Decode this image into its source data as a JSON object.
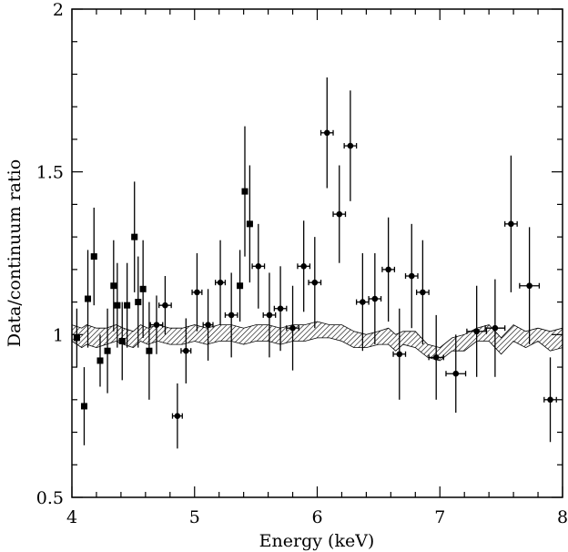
{
  "chart_data": {
    "type": "scatter",
    "title": "",
    "xlabel": "Energy (keV)",
    "ylabel": "Data/continuum ratio",
    "xlim": [
      4,
      8
    ],
    "ylim": [
      0.5,
      2
    ],
    "x_ticks": [
      4,
      5,
      6,
      7,
      8
    ],
    "x_tick_labels": [
      "4",
      "5",
      "6",
      "7",
      "8"
    ],
    "y_ticks": [
      0.5,
      1,
      1.5,
      2
    ],
    "y_tick_labels": [
      "0.5",
      "1",
      "1.5",
      "2"
    ],
    "grid": false,
    "series": [
      {
        "marker": "square",
        "color": "#000000",
        "points": [
          {
            "x": 4.04,
            "y": 0.99,
            "xerr": 0.02,
            "yerr": [
              0.09,
              0.09
            ]
          },
          {
            "x": 4.1,
            "y": 0.78,
            "xerr": 0.02,
            "yerr": [
              0.12,
              0.12
            ]
          },
          {
            "x": 4.13,
            "y": 1.11,
            "xerr": 0.02,
            "yerr": [
              0.15,
              0.15
            ]
          },
          {
            "x": 4.18,
            "y": 1.24,
            "xerr": 0.02,
            "yerr": [
              0.15,
              0.15
            ]
          },
          {
            "x": 4.23,
            "y": 0.92,
            "xerr": 0.02,
            "yerr": [
              0.08,
              0.08
            ]
          },
          {
            "x": 4.29,
            "y": 0.95,
            "xerr": 0.02,
            "yerr": [
              0.13,
              0.13
            ]
          },
          {
            "x": 4.34,
            "y": 1.15,
            "xerr": 0.02,
            "yerr": [
              0.14,
              0.14
            ]
          },
          {
            "x": 4.37,
            "y": 1.09,
            "xerr": 0.02,
            "yerr": [
              0.13,
              0.13
            ]
          },
          {
            "x": 4.41,
            "y": 0.98,
            "xerr": 0.02,
            "yerr": [
              0.12,
              0.12
            ]
          },
          {
            "x": 4.45,
            "y": 1.09,
            "xerr": 0.02,
            "yerr": [
              0.13,
              0.13
            ]
          },
          {
            "x": 4.51,
            "y": 1.3,
            "xerr": 0.02,
            "yerr": [
              0.17,
              0.17
            ]
          },
          {
            "x": 4.54,
            "y": 1.1,
            "xerr": 0.02,
            "yerr": [
              0.14,
              0.14
            ]
          },
          {
            "x": 4.58,
            "y": 1.14,
            "xerr": 0.02,
            "yerr": [
              0.15,
              0.15
            ]
          },
          {
            "x": 4.63,
            "y": 0.95,
            "xerr": 0.02,
            "yerr": [
              0.15,
              0.15
            ]
          },
          {
            "x": 5.37,
            "y": 1.15,
            "xerr": 0.02,
            "yerr": [
              0.11,
              0.11
            ]
          },
          {
            "x": 5.41,
            "y": 1.44,
            "xerr": 0.02,
            "yerr": [
              0.2,
              0.2
            ]
          },
          {
            "x": 5.45,
            "y": 1.34,
            "xerr": 0.02,
            "yerr": [
              0.18,
              0.18
            ]
          }
        ]
      },
      {
        "marker": "circle",
        "color": "#000000",
        "points": [
          {
            "x": 4.69,
            "y": 1.03,
            "xerr": 0.05,
            "yerr": [
              0.09,
              0.09
            ]
          },
          {
            "x": 4.76,
            "y": 1.09,
            "xerr": 0.05,
            "yerr": [
              0.09,
              0.09
            ]
          },
          {
            "x": 4.86,
            "y": 0.75,
            "xerr": 0.04,
            "yerr": [
              0.1,
              0.1
            ]
          },
          {
            "x": 4.93,
            "y": 0.95,
            "xerr": 0.04,
            "yerr": [
              0.1,
              0.1
            ]
          },
          {
            "x": 5.02,
            "y": 1.13,
            "xerr": 0.04,
            "yerr": [
              0.12,
              0.12
            ]
          },
          {
            "x": 5.11,
            "y": 1.03,
            "xerr": 0.04,
            "yerr": [
              0.11,
              0.11
            ]
          },
          {
            "x": 5.21,
            "y": 1.16,
            "xerr": 0.04,
            "yerr": [
              0.13,
              0.13
            ]
          },
          {
            "x": 5.3,
            "y": 1.06,
            "xerr": 0.05,
            "yerr": [
              0.13,
              0.13
            ]
          },
          {
            "x": 5.52,
            "y": 1.21,
            "xerr": 0.05,
            "yerr": [
              0.13,
              0.13
            ]
          },
          {
            "x": 5.61,
            "y": 1.06,
            "xerr": 0.05,
            "yerr": [
              0.13,
              0.13
            ]
          },
          {
            "x": 5.7,
            "y": 1.08,
            "xerr": 0.05,
            "yerr": [
              0.13,
              0.13
            ]
          },
          {
            "x": 5.8,
            "y": 1.02,
            "xerr": 0.05,
            "yerr": [
              0.13,
              0.13
            ]
          },
          {
            "x": 5.89,
            "y": 1.21,
            "xerr": 0.05,
            "yerr": [
              0.14,
              0.14
            ]
          },
          {
            "x": 5.98,
            "y": 1.16,
            "xerr": 0.05,
            "yerr": [
              0.14,
              0.14
            ]
          },
          {
            "x": 6.08,
            "y": 1.62,
            "xerr": 0.05,
            "yerr": [
              0.17,
              0.17
            ]
          },
          {
            "x": 6.18,
            "y": 1.37,
            "xerr": 0.05,
            "yerr": [
              0.15,
              0.15
            ]
          },
          {
            "x": 6.27,
            "y": 1.58,
            "xerr": 0.05,
            "yerr": [
              0.17,
              0.17
            ]
          },
          {
            "x": 6.37,
            "y": 1.1,
            "xerr": 0.05,
            "yerr": [
              0.15,
              0.15
            ]
          },
          {
            "x": 6.47,
            "y": 1.11,
            "xerr": 0.05,
            "yerr": [
              0.14,
              0.14
            ]
          },
          {
            "x": 6.58,
            "y": 1.2,
            "xerr": 0.05,
            "yerr": [
              0.16,
              0.16
            ]
          },
          {
            "x": 6.67,
            "y": 0.94,
            "xerr": 0.05,
            "yerr": [
              0.14,
              0.14
            ]
          },
          {
            "x": 6.77,
            "y": 1.18,
            "xerr": 0.05,
            "yerr": [
              0.16,
              0.16
            ]
          },
          {
            "x": 6.86,
            "y": 1.13,
            "xerr": 0.05,
            "yerr": [
              0.16,
              0.16
            ]
          },
          {
            "x": 6.97,
            "y": 0.93,
            "xerr": 0.06,
            "yerr": [
              0.13,
              0.13
            ]
          },
          {
            "x": 7.13,
            "y": 0.88,
            "xerr": 0.08,
            "yerr": [
              0.12,
              0.12
            ]
          },
          {
            "x": 7.3,
            "y": 1.01,
            "xerr": 0.08,
            "yerr": [
              0.14,
              0.14
            ]
          },
          {
            "x": 7.45,
            "y": 1.02,
            "xerr": 0.08,
            "yerr": [
              0.15,
              0.15
            ]
          },
          {
            "x": 7.58,
            "y": 1.34,
            "xerr": 0.05,
            "yerr": [
              0.21,
              0.21
            ]
          },
          {
            "x": 7.73,
            "y": 1.15,
            "xerr": 0.08,
            "yerr": [
              0.18,
              0.18
            ]
          },
          {
            "x": 7.9,
            "y": 0.8,
            "xerr": 0.05,
            "yerr": [
              0.13,
              0.13
            ]
          }
        ]
      }
    ],
    "band": {
      "style": "diagonal-hatched",
      "x": [
        4.0,
        4.08,
        4.12,
        4.2,
        4.28,
        4.36,
        4.42,
        4.5,
        4.56,
        4.62,
        4.7,
        4.8,
        4.9,
        5.0,
        5.1,
        5.2,
        5.3,
        5.4,
        5.5,
        5.6,
        5.7,
        5.8,
        5.9,
        6.0,
        6.1,
        6.2,
        6.3,
        6.4,
        6.5,
        6.58,
        6.64,
        6.7,
        6.8,
        6.9,
        7.0,
        7.1,
        7.2,
        7.3,
        7.4,
        7.5,
        7.6,
        7.7,
        7.8,
        7.9,
        8.0
      ],
      "lower": [
        0.98,
        0.96,
        0.97,
        0.96,
        0.97,
        0.98,
        0.97,
        0.96,
        0.98,
        0.97,
        0.98,
        0.97,
        0.97,
        0.98,
        0.97,
        0.98,
        0.98,
        0.97,
        0.98,
        0.98,
        0.97,
        0.98,
        0.98,
        0.99,
        0.99,
        0.98,
        0.96,
        0.96,
        0.97,
        0.97,
        0.95,
        0.97,
        0.96,
        0.93,
        0.92,
        0.95,
        0.95,
        0.98,
        0.98,
        0.94,
        0.98,
        0.96,
        0.98,
        0.95,
        0.96
      ],
      "upper": [
        1.03,
        1.02,
        1.03,
        1.02,
        1.02,
        1.03,
        1.02,
        1.01,
        1.03,
        1.02,
        1.03,
        1.02,
        1.02,
        1.03,
        1.02,
        1.03,
        1.03,
        1.02,
        1.03,
        1.03,
        1.02,
        1.03,
        1.03,
        1.04,
        1.03,
        1.03,
        1.01,
        1.0,
        1.01,
        1.02,
        1.0,
        1.01,
        1.01,
        0.97,
        0.96,
        0.99,
        1.0,
        1.02,
        1.03,
        0.99,
        1.03,
        1.01,
        1.02,
        1.01,
        1.02
      ]
    }
  }
}
